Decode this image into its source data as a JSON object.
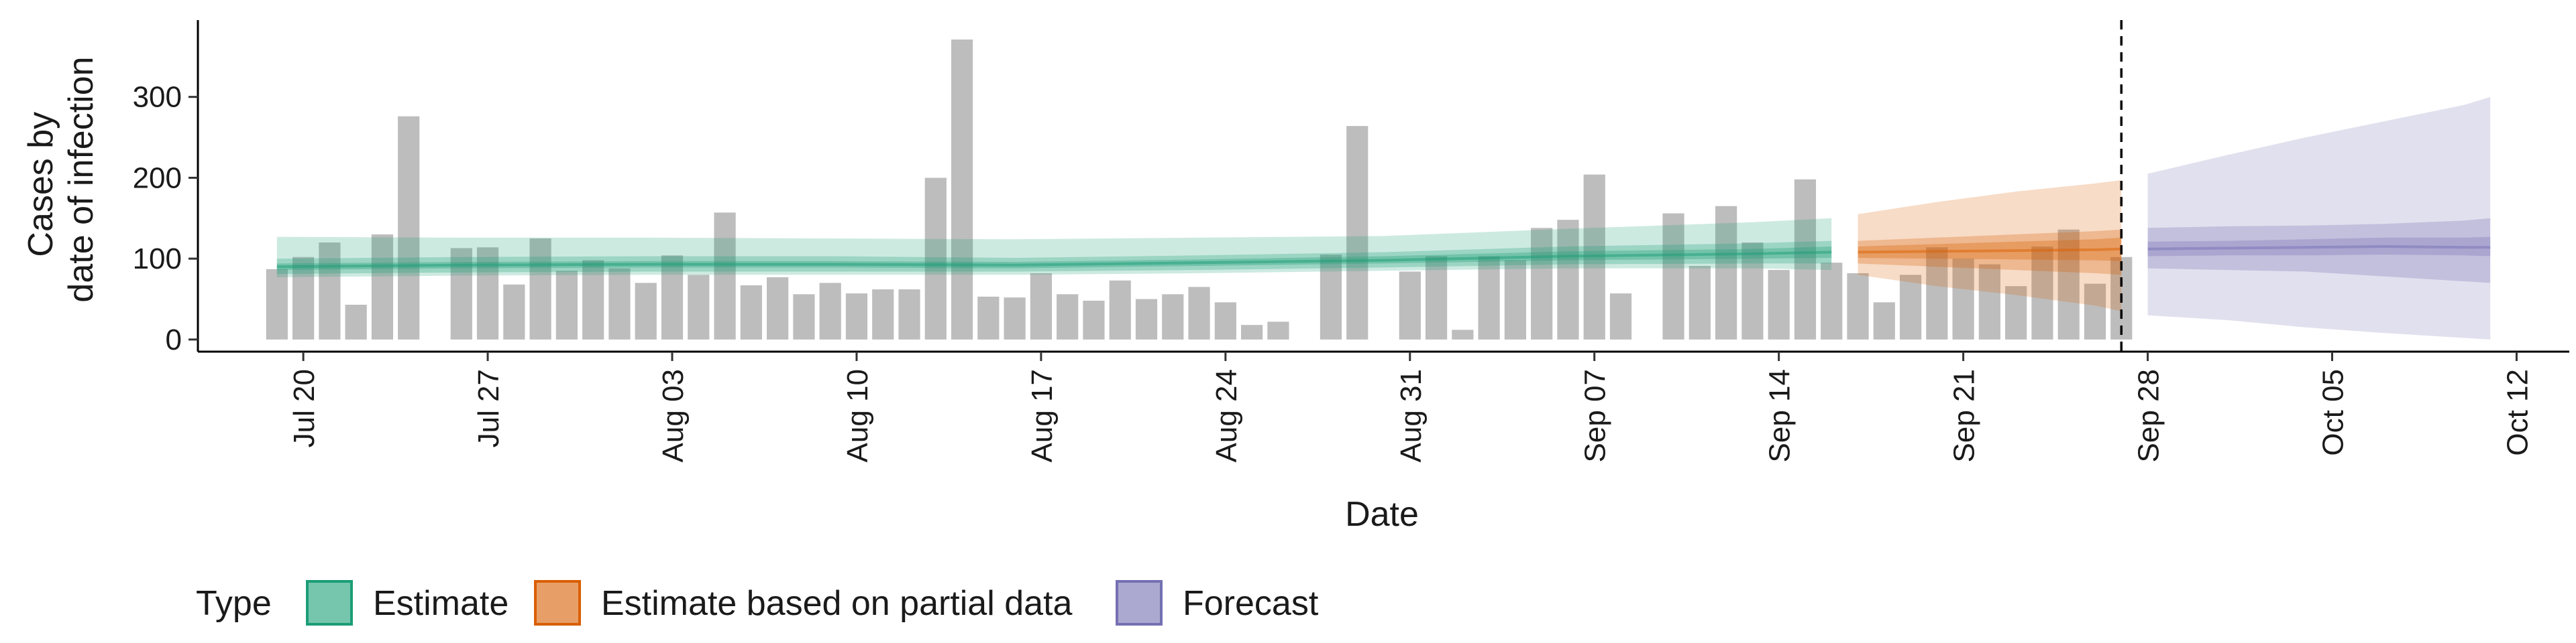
{
  "chart_data": {
    "type": "bar",
    "xlabel": "Date",
    "ylabel_lines": [
      "Cases by",
      "date of infection"
    ],
    "ylim": [
      -15,
      395
    ],
    "yticks": [
      0,
      100,
      200,
      300
    ],
    "xlim": [
      "2020-07-16",
      "2020-10-14"
    ],
    "xticks": [
      {
        "date": "2020-07-20",
        "label": "Jul 20"
      },
      {
        "date": "2020-07-27",
        "label": "Jul 27"
      },
      {
        "date": "2020-08-03",
        "label": "Aug 03"
      },
      {
        "date": "2020-08-10",
        "label": "Aug 10"
      },
      {
        "date": "2020-08-17",
        "label": "Aug 17"
      },
      {
        "date": "2020-08-24",
        "label": "Aug 24"
      },
      {
        "date": "2020-08-31",
        "label": "Aug 31"
      },
      {
        "date": "2020-09-07",
        "label": "Sep 07"
      },
      {
        "date": "2020-09-14",
        "label": "Sep 14"
      },
      {
        "date": "2020-09-21",
        "label": "Sep 21"
      },
      {
        "date": "2020-09-28",
        "label": "Sep 28"
      },
      {
        "date": "2020-10-05",
        "label": "Oct 05"
      },
      {
        "date": "2020-10-12",
        "label": "Oct 12"
      }
    ],
    "bars": {
      "start_date": "2020-07-19",
      "color": "#bdbdbd",
      "values": [
        87,
        102,
        120,
        43,
        130,
        276,
        0,
        113,
        114,
        68,
        125,
        85,
        98,
        88,
        70,
        104,
        80,
        157,
        67,
        77,
        56,
        70,
        57,
        62,
        62,
        200,
        371,
        53,
        52,
        82,
        56,
        48,
        73,
        50,
        56,
        65,
        46,
        18,
        22,
        0,
        105,
        264,
        0,
        84,
        103,
        12,
        103,
        98,
        138,
        148,
        204,
        57,
        0,
        156,
        91,
        165,
        120,
        86,
        198,
        95,
        82,
        46,
        80,
        114,
        100,
        93,
        66,
        115,
        136,
        69,
        102
      ]
    },
    "estimate_bands": [
      {
        "type": "Estimate",
        "color": "#1b9e77",
        "dates": [
          "2020-07-19",
          "2020-07-26",
          "2020-08-02",
          "2020-08-09",
          "2020-08-16",
          "2020-08-23",
          "2020-08-30",
          "2020-09-06",
          "2020-09-13",
          "2020-09-16"
        ],
        "median": [
          90,
          92,
          93,
          93,
          92,
          95,
          98,
          103,
          106,
          108
        ],
        "inner": {
          "low": [
            86,
            88,
            89,
            89,
            88,
            91,
            94,
            98,
            100,
            101
          ],
          "high": [
            94,
            96,
            97,
            97,
            96,
            99,
            103,
            109,
            112,
            115
          ]
        },
        "mid": {
          "low": [
            81,
            83,
            84,
            84,
            84,
            86,
            89,
            93,
            94,
            94
          ],
          "high": [
            100,
            102,
            103,
            103,
            101,
            104,
            108,
            115,
            119,
            122
          ]
        },
        "outer": {
          "low": [
            77,
            79,
            80,
            80,
            80,
            82,
            85,
            88,
            88,
            86
          ],
          "high": [
            127,
            126,
            126,
            125,
            124,
            126,
            128,
            137,
            145,
            150
          ]
        }
      },
      {
        "type": "Estimate based on partial data",
        "color": "#d95f02",
        "dates": [
          "2020-09-17",
          "2020-09-20",
          "2020-09-23",
          "2020-09-26",
          "2020-09-27"
        ],
        "median": [
          108,
          109,
          110,
          111,
          112
        ],
        "inner": {
          "low": [
            101,
            100,
            99,
            98,
            97
          ],
          "high": [
            115,
            118,
            121,
            124,
            126
          ]
        },
        "mid": {
          "low": [
            94,
            90,
            86,
            82,
            80
          ],
          "high": [
            122,
            126,
            130,
            134,
            136
          ]
        },
        "outer": {
          "low": [
            80,
            66,
            55,
            42,
            35
          ],
          "high": [
            155,
            170,
            183,
            193,
            197
          ]
        }
      },
      {
        "type": "Forecast",
        "color": "#7570b3",
        "dates": [
          "2020-09-28",
          "2020-10-01",
          "2020-10-04",
          "2020-10-07",
          "2020-10-10",
          "2020-10-11"
        ],
        "median": [
          112,
          113,
          114,
          115,
          114,
          114
        ],
        "inner": {
          "low": [
            103,
            104,
            104,
            105,
            104,
            103
          ],
          "high": [
            121,
            122,
            124,
            126,
            126,
            127
          ]
        },
        "mid": {
          "low": [
            88,
            86,
            84,
            78,
            72,
            70
          ],
          "high": [
            138,
            140,
            141,
            143,
            147,
            150
          ]
        },
        "outer": {
          "low": [
            30,
            24,
            15,
            8,
            2,
            0
          ],
          "high": [
            205,
            228,
            250,
            270,
            290,
            300
          ]
        }
      }
    ],
    "vline_date": "2020-09-27",
    "legend": {
      "title": "Type",
      "position": "bottom-left",
      "items": [
        {
          "label": "Estimate",
          "color": "#1b9e77"
        },
        {
          "label": "Estimate based on partial data",
          "color": "#d95f02"
        },
        {
          "label": "Forecast",
          "color": "#7570b3"
        }
      ]
    }
  }
}
